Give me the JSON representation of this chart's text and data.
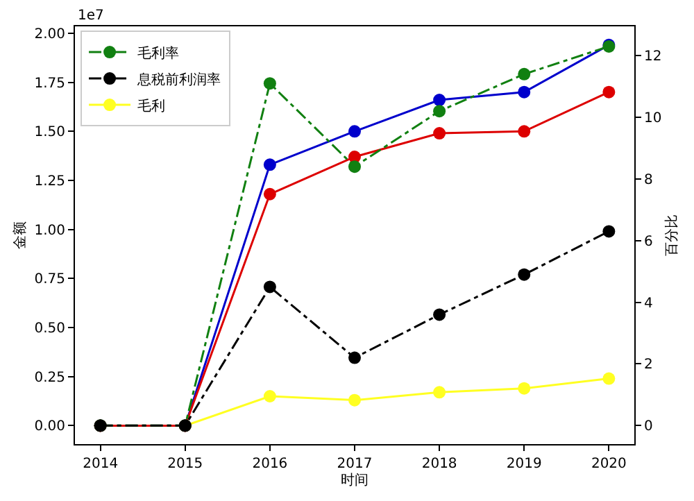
{
  "chart_data": {
    "type": "line",
    "xlabel": "时间",
    "ylabel": "金额",
    "y2label": "百分比",
    "annotations": [
      "1e7"
    ],
    "x": [
      2014,
      2015,
      2016,
      2017,
      2018,
      2019,
      2020
    ],
    "xlim": [
      2013.7,
      2020.3
    ],
    "xticks": [
      2014,
      2015,
      2016,
      2017,
      2018,
      2019,
      2020
    ],
    "ylim": [
      -0.094,
      2.035
    ],
    "yticks": [
      {
        "value": 0,
        "label": "0.00"
      },
      0.25,
      {
        "value": 0.5,
        "label": "0.50"
      },
      0.75,
      {
        "value": 1,
        "label": "1.00"
      },
      1.25,
      {
        "value": 1.5,
        "label": "1.50"
      },
      1.75,
      {
        "value": 2,
        "label": "2.00"
      }
    ],
    "y2lim": [
      -0.6,
      12.95
    ],
    "y2ticks": [
      0,
      2,
      4,
      6,
      8,
      10,
      12
    ],
    "grid": false,
    "legend": "top left",
    "marker": "circle",
    "series": [
      {
        "color": "#0000cc",
        "line_style": "solid",
        "values": [
          0,
          0,
          1.33,
          1.5,
          1.66,
          1.7,
          1.94
        ]
      },
      {
        "color": "#dd0000",
        "line_style": "solid",
        "values": [
          0,
          0,
          1.18,
          1.37,
          1.49,
          1.5,
          1.7
        ]
      },
      {
        "name": "毛利率",
        "color": "#118011",
        "line_style": "dashdot",
        "axis": "y2",
        "values": [
          0,
          0,
          11.1,
          8.4,
          10.2,
          11.4,
          12.3
        ]
      },
      {
        "name": "息税前利润率",
        "color": "#000000",
        "line_style": "dashdot",
        "axis": "y2",
        "values": [
          0,
          0,
          4.5,
          2.2,
          3.6,
          4.9,
          6.3
        ]
      },
      {
        "name": "毛利",
        "color": "#ffff22",
        "line_style": "solid",
        "values": [
          0,
          0,
          0.15,
          0.13,
          0.17,
          0.19,
          0.24
        ]
      }
    ]
  }
}
